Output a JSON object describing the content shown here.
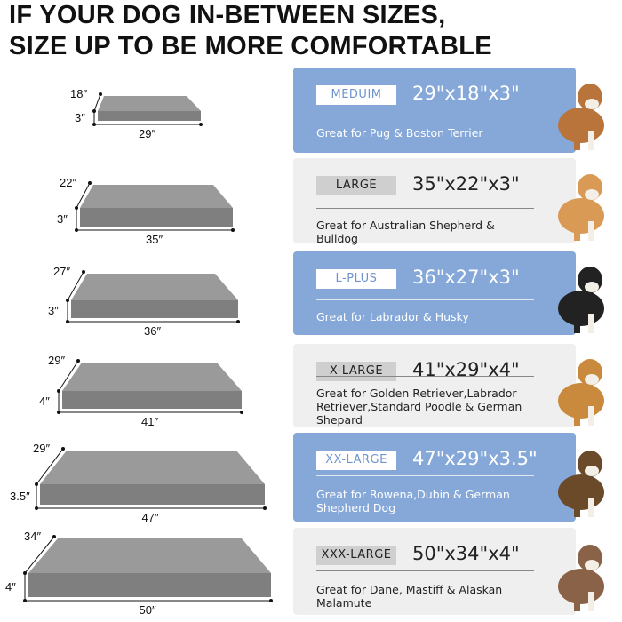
{
  "headline": {
    "line1": "IF YOUR DOG IN-BETWEEN SIZES,",
    "line2": "SIZE UP TO BE MORE COMFORTABLE"
  },
  "colors": {
    "blue_panel": "#85a8d9",
    "gray_panel": "#efefef",
    "bed": "#8f8f8f"
  },
  "sizes": [
    {
      "name": "MEDUIM",
      "dims": "29\"x18\"x3\"",
      "desc": "Great for Pug & Boston Terrier",
      "style": "blue",
      "width": "29″",
      "depth": "18″",
      "height": "3″",
      "dog": "bulldog"
    },
    {
      "name": "LARGE",
      "dims": "35\"x22\"x3\"",
      "desc": "Great for Australian Shepherd & Bulldog",
      "style": "gray",
      "width": "35″",
      "depth": "22″",
      "height": "3″",
      "dog": "shiba-inu"
    },
    {
      "name": "L-PLUS",
      "dims": "36\"x27\"x3\"",
      "desc": "Great for Labrador & Husky",
      "style": "blue",
      "width": "36″",
      "depth": "27″",
      "height": "3″",
      "dog": "border-collie"
    },
    {
      "name": "X-LARGE",
      "dims": "41\"x29\"x4\"",
      "desc": "Great for Golden Retriever,Labrador Retriever,Standard Poodle & German Shepard",
      "style": "gray",
      "width": "41″",
      "depth": "29″",
      "height": "4″",
      "dog": "golden-retriever"
    },
    {
      "name": "XX-LARGE",
      "dims": "47\"x29\"x3.5\"",
      "desc": "Great for Rowena,Dubin & German Shepherd Dog",
      "style": "blue",
      "width": "47″",
      "depth": "29″",
      "height": "3.5″",
      "dog": "german-shepherd"
    },
    {
      "name": "XXX-LARGE",
      "dims": "50\"x34\"x4\"",
      "desc": "Great for Dane, Mastiff & Alaskan Malamute",
      "style": "gray",
      "width": "50″",
      "depth": "34″",
      "height": "4″",
      "dog": "pit-bull"
    }
  ]
}
